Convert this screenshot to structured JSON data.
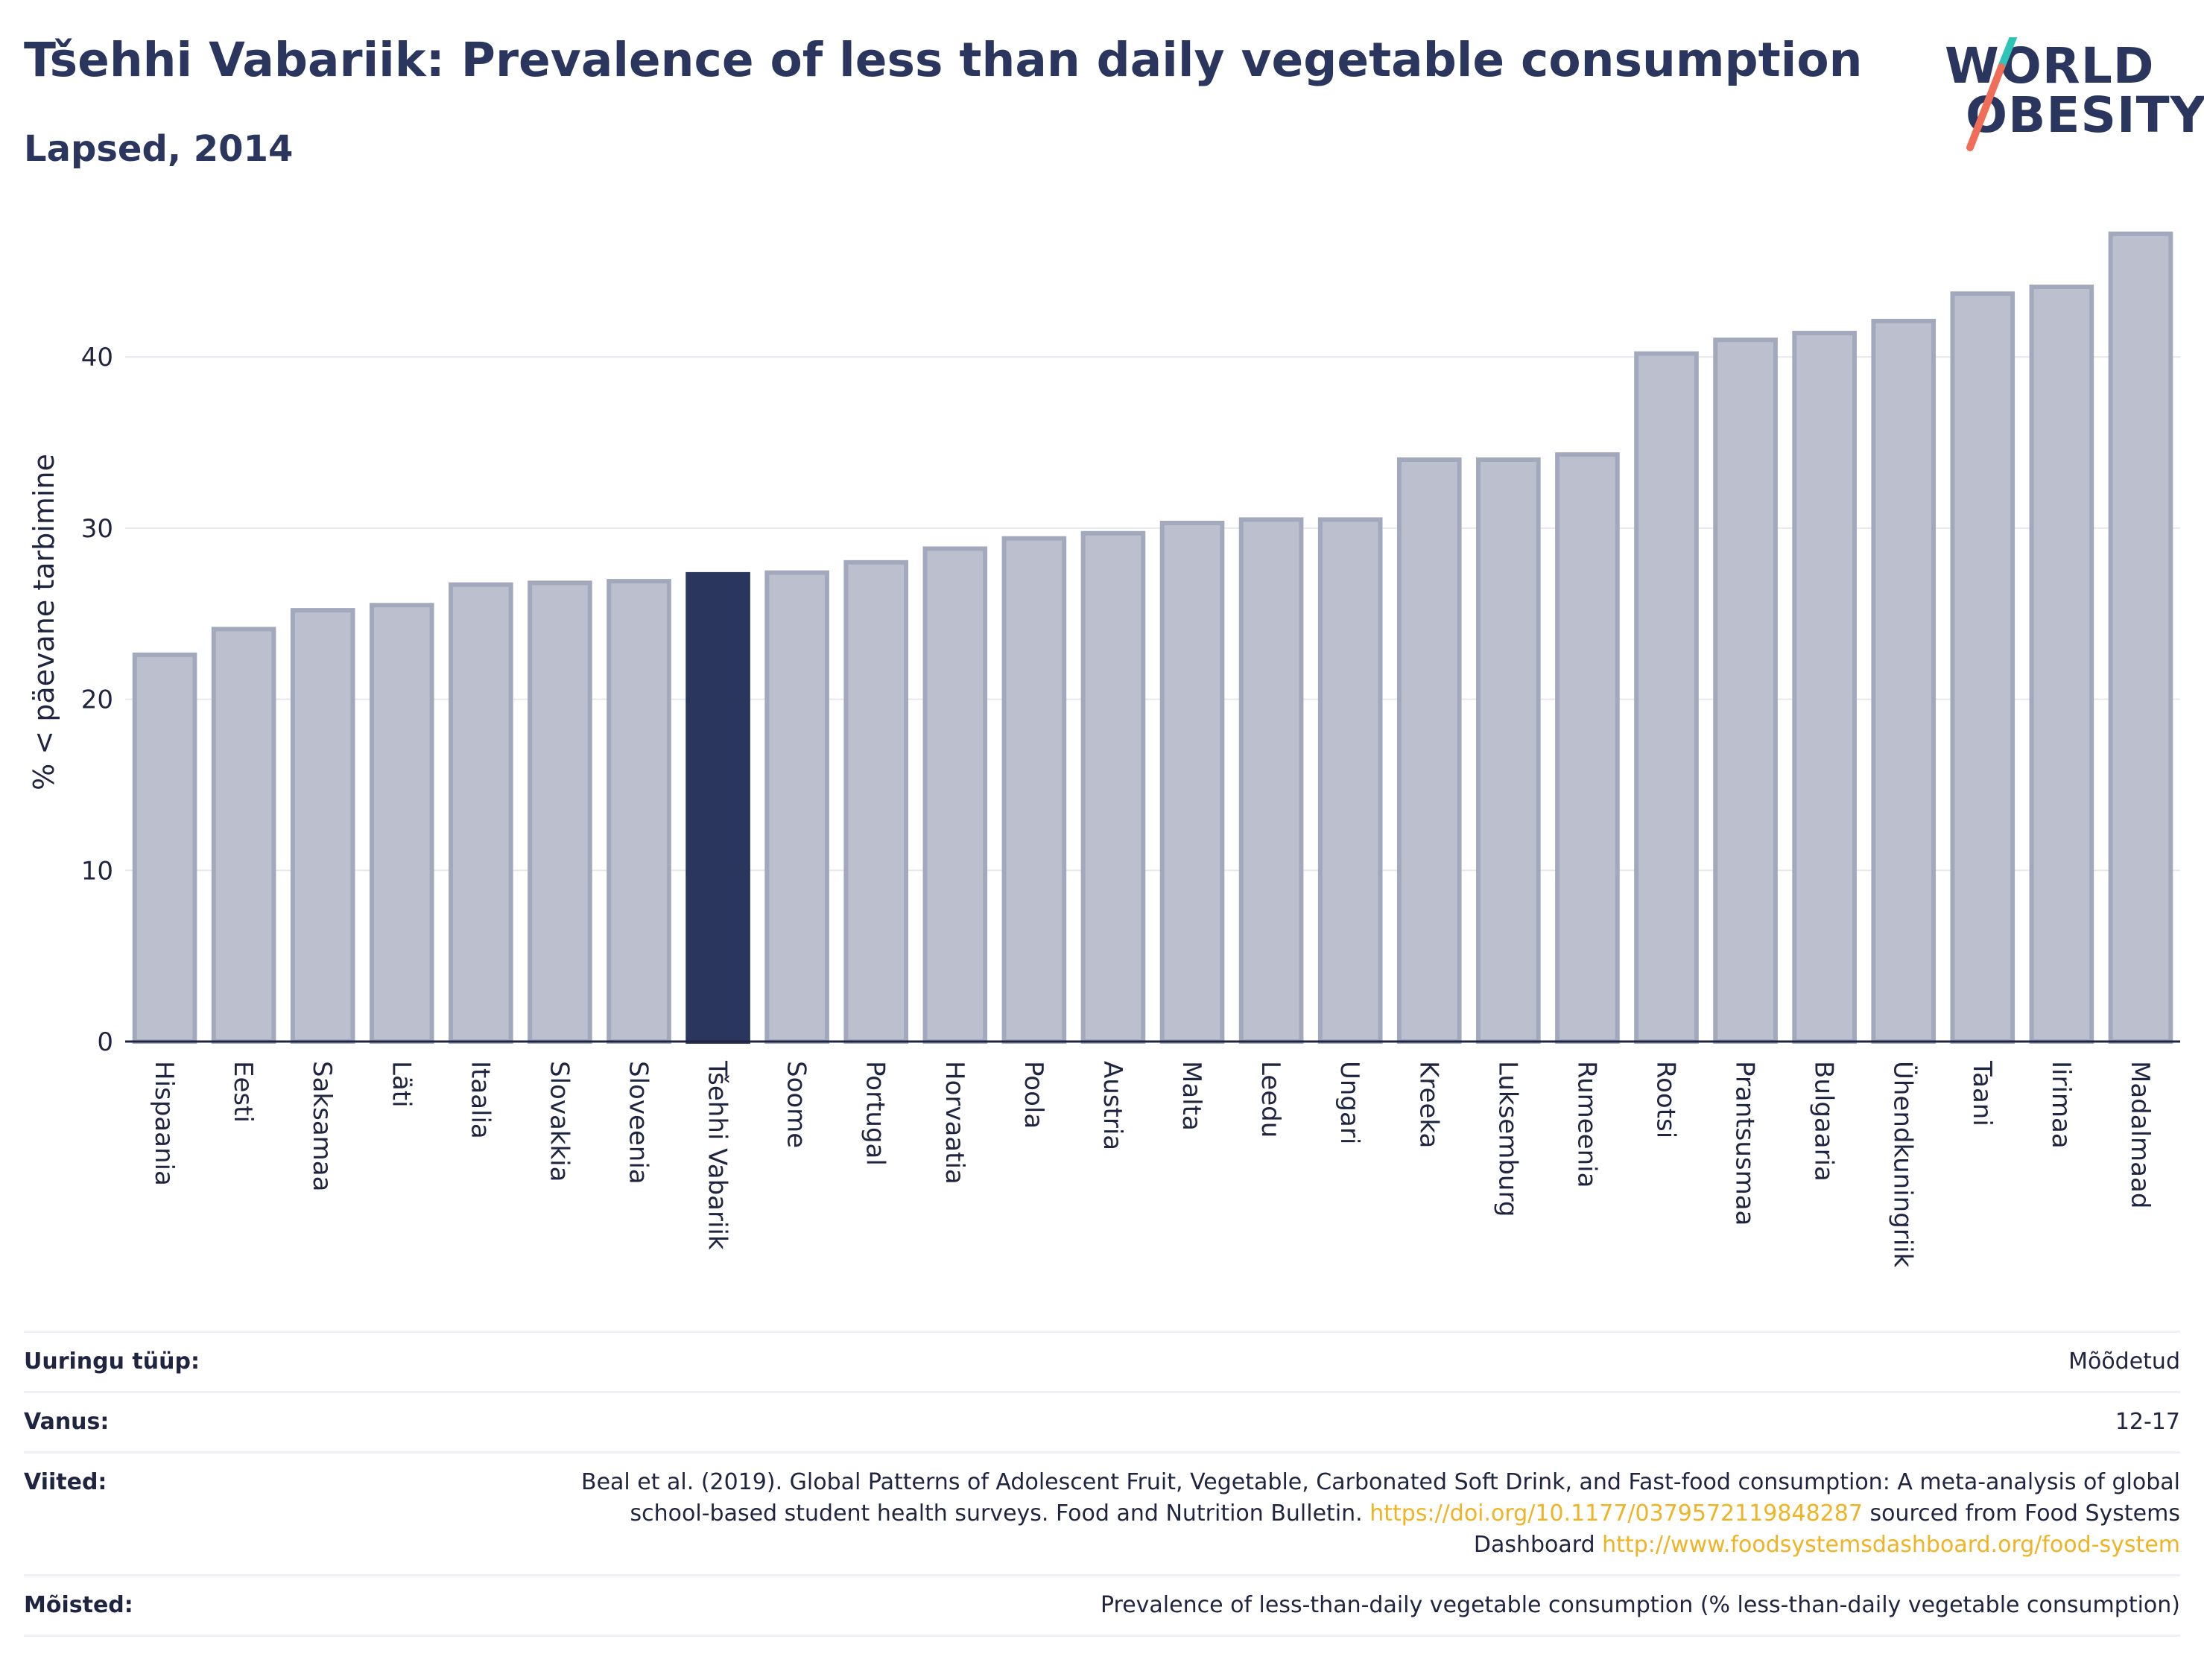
{
  "header": {
    "title": "Tšehhi Vabariik: Prevalence of less than daily vegetable consumption",
    "subtitle": "Lapsed, 2014"
  },
  "logo": {
    "line1": "WORLD",
    "line2": "OBESITY",
    "colors": {
      "text": "#2b365e",
      "slash_top": "#2ec4b6",
      "slash_bottom": "#f06e57"
    }
  },
  "colors": {
    "bar": "#bcc0ce",
    "bar_border": "#a3a9bd",
    "highlight": "#2b365e",
    "grid": "#e6e8ee",
    "axis": "#1f2440"
  },
  "chart_data": {
    "type": "bar",
    "ylabel": "% < päevane tarbimine",
    "xlabel": "",
    "ylim": [
      0,
      47.8
    ],
    "yticks": [
      0,
      10,
      20,
      30,
      40
    ],
    "grid": true,
    "highlight": "Tšehhi Vabariik",
    "categories": [
      "Hispaania",
      "Eesti",
      "Saksamaa",
      "Läti",
      "Itaalia",
      "Slovakkia",
      "Sloveenia",
      "Tšehhi Vabariik",
      "Soome",
      "Portugal",
      "Horvaatia",
      "Poola",
      "Austria",
      "Malta",
      "Leedu",
      "Ungari",
      "Kreeka",
      "Luksemburg",
      "Rumeenia",
      "Rootsi",
      "Prantsusmaa",
      "Bulgaaria",
      "Ühendkuningriik",
      "Taani",
      "Iirimaa",
      "Madalmaad"
    ],
    "values": [
      22.6,
      24.1,
      25.2,
      25.5,
      26.7,
      26.8,
      26.9,
      27.3,
      27.4,
      28.0,
      28.8,
      29.4,
      29.7,
      30.3,
      30.5,
      30.5,
      34.0,
      34.0,
      34.3,
      40.2,
      41.0,
      41.4,
      42.1,
      43.7,
      44.1,
      47.2
    ]
  },
  "meta": {
    "survey_type": {
      "label": "Uuringu tüüp:",
      "value": "Mõõdetud"
    },
    "age": {
      "label": "Vanus:",
      "value": "12-17"
    },
    "references": {
      "label": "Viited:",
      "text1": "Beal et al. (2019). Global Patterns of Adolescent Fruit, Vegetable, Carbonated Soft Drink, and Fast-food consumption: A meta-analysis of global school-based student health surveys. Food and Nutrition Bulletin. ",
      "link1": "https://doi.org/10.1177/0379572119848287",
      "text2": " sourced from Food Systems Dashboard ",
      "link2": "http://www.foodsystemsdashboard.org/food-system"
    },
    "definitions": {
      "label": "Mõisted:",
      "value": "Prevalence of less-than-daily vegetable consumption (% less-than-daily vegetable consumption)"
    }
  }
}
